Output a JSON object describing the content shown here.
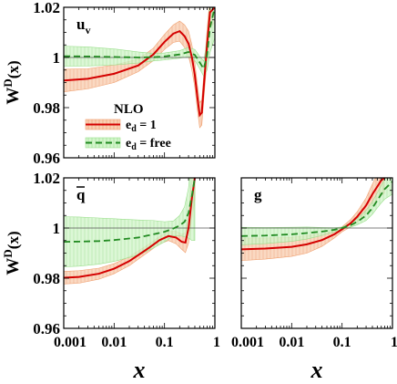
{
  "chart_data": [
    {
      "type": "line",
      "panel_label": "u",
      "panel_label_sub": "v",
      "ylabel_main": "W",
      "ylabel_sup": "D",
      "ylabel_arg": "(x)",
      "xscale": "log",
      "xlim": [
        0.001,
        1
      ],
      "ylim": [
        0.96,
        1.02
      ],
      "yticks": [
        "0.96",
        "0.98",
        "1",
        "1.02"
      ],
      "legend": {
        "title": "NLO",
        "entries": [
          {
            "main": "e",
            "sub": "d",
            "rest": " = 1"
          },
          {
            "main": "e",
            "sub": "d",
            "rest": " = free"
          }
        ],
        "placement": "lower-center"
      },
      "series": [
        {
          "style": "solid",
          "color": "#d40000",
          "band_color": "#f6b88f",
          "x": [
            0.001,
            0.003,
            0.01,
            0.03,
            0.06,
            0.1,
            0.15,
            0.2,
            0.25,
            0.3,
            0.35,
            0.4,
            0.45,
            0.5,
            0.55,
            0.6,
            0.7,
            0.8,
            1.0
          ],
          "y": [
            0.9908,
            0.9915,
            0.9935,
            0.9968,
            1.0012,
            1.0062,
            1.0095,
            1.0105,
            1.0085,
            1.0055,
            1.0,
            0.993,
            0.984,
            0.977,
            0.978,
            0.988,
            1.005,
            1.018,
            1.02
          ],
          "band": [
            0.0045,
            0.004,
            0.0035,
            0.0025,
            0.0025,
            0.003,
            0.0035,
            0.004,
            0.0045,
            0.005,
            0.005,
            0.005,
            0.005,
            0.005,
            0.005,
            0.005,
            0.006,
            0.006,
            0.006
          ]
        },
        {
          "style": "dashed",
          "color": "#228b22",
          "band_color": "#c8f0c0",
          "x": [
            0.001,
            0.003,
            0.01,
            0.03,
            0.06,
            0.1,
            0.2,
            0.3,
            0.4,
            0.5,
            0.6,
            0.7,
            0.8,
            1.0
          ],
          "y": [
            1.0005,
            1.0004,
            1.0002,
            1.0,
            1.0001,
            1.0004,
            1.0012,
            1.0022,
            1.001,
            0.998,
            0.9955,
            1.001,
            1.012,
            1.02
          ],
          "band": [
            0.004,
            0.0038,
            0.0032,
            0.0022,
            0.0015,
            0.0014,
            0.0015,
            0.0018,
            0.0022,
            0.0025,
            0.003,
            0.006,
            0.01,
            0.012
          ]
        }
      ]
    },
    {
      "type": "line",
      "panel_label": "q",
      "panel_label_bar": true,
      "ylabel_main": "W",
      "ylabel_sup": "D",
      "ylabel_arg": "(x)",
      "xlabel": "x",
      "xscale": "log",
      "xlim": [
        0.001,
        1
      ],
      "ylim": [
        0.96,
        1.02
      ],
      "yticks": [
        "0.96",
        "0.98",
        "1",
        "1.02"
      ],
      "xticks": [
        "0.001",
        "0.01",
        "0.1",
        "1"
      ],
      "series": [
        {
          "style": "solid",
          "color": "#d40000",
          "band_color": "#f6b88f",
          "x": [
            0.001,
            0.002,
            0.005,
            0.01,
            0.02,
            0.05,
            0.08,
            0.12,
            0.17,
            0.22,
            0.26,
            0.3,
            0.35,
            0.4
          ],
          "y": [
            0.9802,
            0.9805,
            0.9818,
            0.9838,
            0.9868,
            0.9922,
            0.9952,
            0.9968,
            0.9962,
            0.9945,
            0.9942,
            1.0,
            1.012,
            1.02
          ],
          "band": [
            0.0025,
            0.0025,
            0.0022,
            0.002,
            0.0018,
            0.0015,
            0.0015,
            0.0018,
            0.0025,
            0.003,
            0.004,
            0.006,
            0.008,
            0.009
          ]
        },
        {
          "style": "dashed",
          "color": "#228b22",
          "band_color": "#c8f0c0",
          "x": [
            0.001,
            0.002,
            0.005,
            0.01,
            0.03,
            0.06,
            0.1,
            0.15,
            0.2,
            0.25,
            0.3,
            0.35,
            0.4
          ],
          "y": [
            0.9945,
            0.9946,
            0.9948,
            0.9952,
            0.9962,
            0.9975,
            0.9985,
            0.9998,
            1.001,
            1.0025,
            1.006,
            1.013,
            1.02
          ],
          "band": [
            0.01,
            0.0098,
            0.0092,
            0.0085,
            0.007,
            0.0055,
            0.004,
            0.003,
            0.004,
            0.006,
            0.01,
            0.018,
            0.025
          ]
        }
      ]
    },
    {
      "type": "line",
      "panel_label": "g",
      "xlabel": "x",
      "xscale": "log",
      "xlim": [
        0.001,
        1
      ],
      "ylim": [
        0.96,
        1.02
      ],
      "xticks": [
        "0.001",
        "0.01",
        "0.1",
        "1"
      ],
      "series": [
        {
          "style": "solid",
          "color": "#d40000",
          "band_color": "#f6b88f",
          "x": [
            0.001,
            0.003,
            0.01,
            0.02,
            0.04,
            0.07,
            0.1,
            0.15,
            0.2,
            0.3,
            0.4,
            0.5,
            0.6,
            0.7
          ],
          "y": [
            0.9915,
            0.9918,
            0.9925,
            0.9935,
            0.9952,
            0.9975,
            0.9995,
            1.002,
            1.0045,
            1.009,
            1.0135,
            1.0165,
            1.019,
            1.02
          ],
          "band": [
            0.0045,
            0.0042,
            0.0038,
            0.0035,
            0.0025,
            0.0015,
            0.001,
            0.0015,
            0.002,
            0.003,
            0.004,
            0.005,
            0.006,
            0.006
          ]
        },
        {
          "style": "dashed",
          "color": "#228b22",
          "band_color": "#c8f0c0",
          "x": [
            0.001,
            0.003,
            0.01,
            0.02,
            0.04,
            0.07,
            0.1,
            0.15,
            0.2,
            0.3,
            0.4,
            0.5,
            0.6,
            0.7,
            1.0
          ],
          "y": [
            0.9968,
            0.997,
            0.9975,
            0.998,
            0.9986,
            0.9993,
            1.0,
            1.0012,
            1.0025,
            1.005,
            1.008,
            1.011,
            1.0135,
            1.0155,
            1.0185
          ],
          "band": [
            0.0035,
            0.0032,
            0.0028,
            0.0024,
            0.0016,
            0.0008,
            0.0004,
            0.0008,
            0.0012,
            0.002,
            0.0025,
            0.003,
            0.0035,
            0.004,
            0.005
          ]
        }
      ]
    }
  ]
}
